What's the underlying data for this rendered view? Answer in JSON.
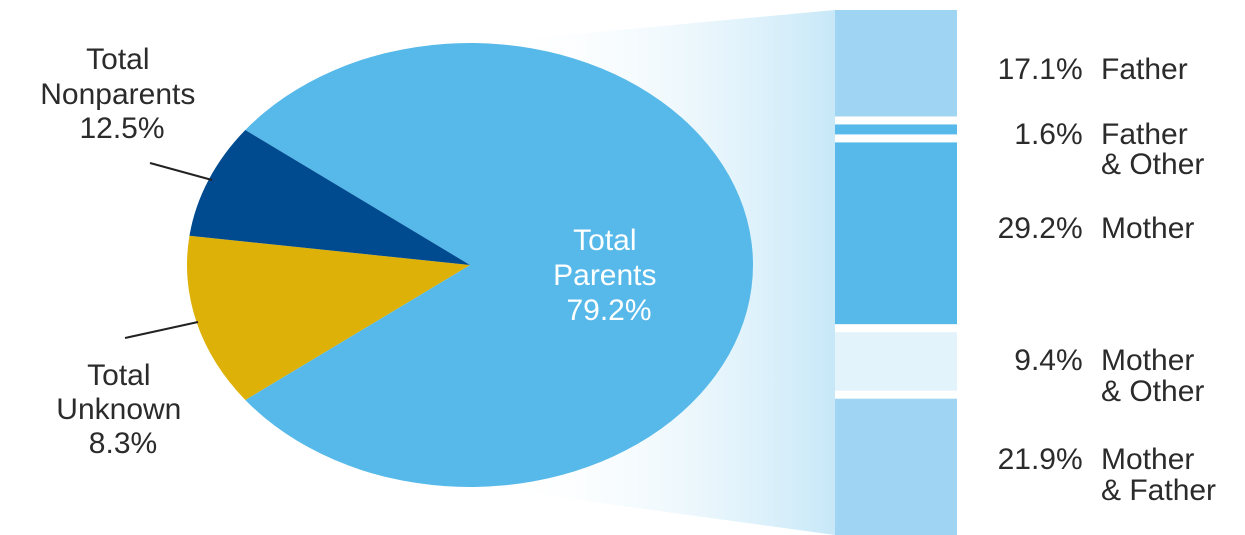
{
  "chart_data": {
    "type": "pie",
    "slices": [
      {
        "id": "parents",
        "label_lines": [
          "Total",
          "Parents",
          "79.2%"
        ],
        "value": 79.2,
        "color": "#56B9E9"
      },
      {
        "id": "nonparents",
        "label_lines": [
          "Total",
          "Nonparents",
          "12.5%"
        ],
        "value": 12.5,
        "color": "#DDB107"
      },
      {
        "id": "unknown",
        "label_lines": [
          "Total",
          "Unknown",
          "8.3%"
        ],
        "value": 8.3,
        "color": "#004A8F"
      }
    ],
    "breakdown": {
      "of": "parents",
      "segments": [
        {
          "pct_text": "17.1%",
          "label_lines": [
            "Father"
          ],
          "value": 17.1,
          "color": "#9FD5F2"
        },
        {
          "pct_text": "1.6%",
          "label_lines": [
            "Father",
            "& Other"
          ],
          "value": 1.6,
          "color": "#56B9E9"
        },
        {
          "pct_text": "29.2%",
          "label_lines": [
            "Mother"
          ],
          "value": 29.2,
          "color": "#56B9E9"
        },
        {
          "pct_text": "9.4%",
          "label_lines": [
            "Mother",
            "& Other"
          ],
          "value": 9.4,
          "color": "#E3F3FC"
        },
        {
          "pct_text": "21.9%",
          "label_lines": [
            "Mother",
            "& Father"
          ],
          "value": 21.9,
          "color": "#9FD5F2"
        }
      ]
    }
  }
}
